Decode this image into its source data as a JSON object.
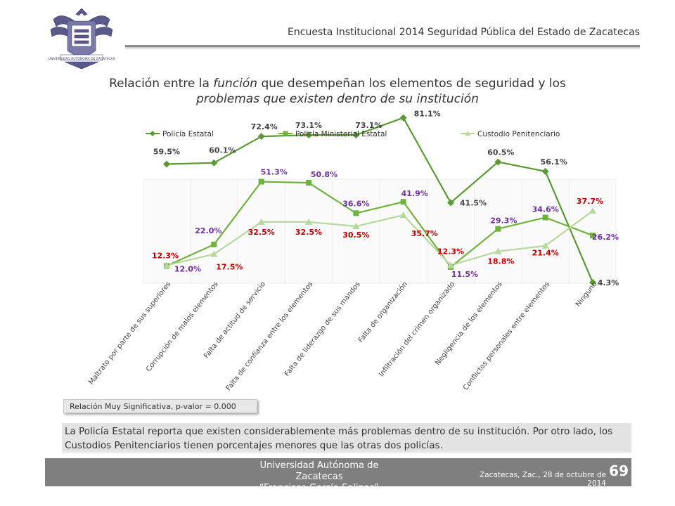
{
  "header": {
    "title": "Encuesta Institucional 2014 Seguridad Pública del Estado de Zacatecas",
    "logo_label": "UNIVERSIDAD AUTÓNOMA DE ZACATECAS"
  },
  "slide_title": {
    "part1": "Relación entre la ",
    "italic_word": "función",
    "part2": " que desempeñan los elementos de seguridad y los",
    "line2": "problemas que existen dentro de su institución"
  },
  "significance": "Relación Muy Significativa, p-valor = 0.000",
  "summary": "La Policía Estatal reporta que existen considerablemente más problemas dentro de su institución. Por otro lado, los Custodios Penitenciarios tienen porcentajes menores que las otras dos policías.",
  "footer": {
    "university_line1": "Universidad Autónoma de Zacatecas",
    "university_line2": "“Francisco García Salinas”",
    "date": "Zacatecas, Zac., 28 de octubre de 2014",
    "page": "69"
  },
  "colors": {
    "policia_estatal": "#5a9a32",
    "policia_ministerial": "#6fb23c",
    "custodio": "#b5d99a",
    "label_dark": "#444444",
    "label_purple": "#7030a0",
    "label_red": "#c00000"
  },
  "chart_data": {
    "type": "line",
    "title": "",
    "xlabel": "",
    "ylabel": "",
    "ylim": [
      0,
      100
    ],
    "legend_position": "top",
    "grid": false,
    "categories": [
      "Maltrato por parte de sus superiores",
      "Corrupción de malos elementos",
      "Falta de actitud de servicio",
      "Falta de confianza entre los elementos",
      "Falta de liderazgo de sus mandos",
      "Falta de organización",
      "Infiltración del crimen organizado",
      "Negligencia de los elementos",
      "Conflictos personales entre elementos",
      "Ninguno"
    ],
    "series": [
      {
        "name": "Policía Estatal",
        "marker": "diamond",
        "values": [
          59.5,
          60.1,
          72.4,
          73.1,
          73.1,
          81.1,
          41.5,
          60.5,
          56.1,
          4.3
        ],
        "labels": [
          "59.5%",
          "60.1%",
          "72.4%",
          "73.1%",
          "73.1%",
          "81.1%",
          "41.5%",
          "60.5%",
          "56.1%",
          "4.3%"
        ]
      },
      {
        "name": "Policía Ministerial Estatal",
        "marker": "square",
        "values": [
          12.0,
          22.0,
          51.3,
          50.8,
          36.6,
          41.9,
          11.5,
          29.3,
          34.6,
          26.2
        ],
        "labels": [
          "12.0%",
          "22.0%",
          "51.3%",
          "50.8%",
          "36.6%",
          "41.9%",
          "11.5%",
          "29.3%",
          "34.6%",
          "26.2%"
        ]
      },
      {
        "name": "Custodio Penitenciario",
        "marker": "triangle",
        "values": [
          12.3,
          17.5,
          32.5,
          32.5,
          30.5,
          35.7,
          12.3,
          18.8,
          21.4,
          37.7
        ],
        "labels": [
          "12.3%",
          "17.5%",
          "32.5%",
          "32.5%",
          "30.5%",
          "35.7%",
          "12.3%",
          "18.8%",
          "21.4%",
          "37.7%"
        ]
      }
    ]
  }
}
